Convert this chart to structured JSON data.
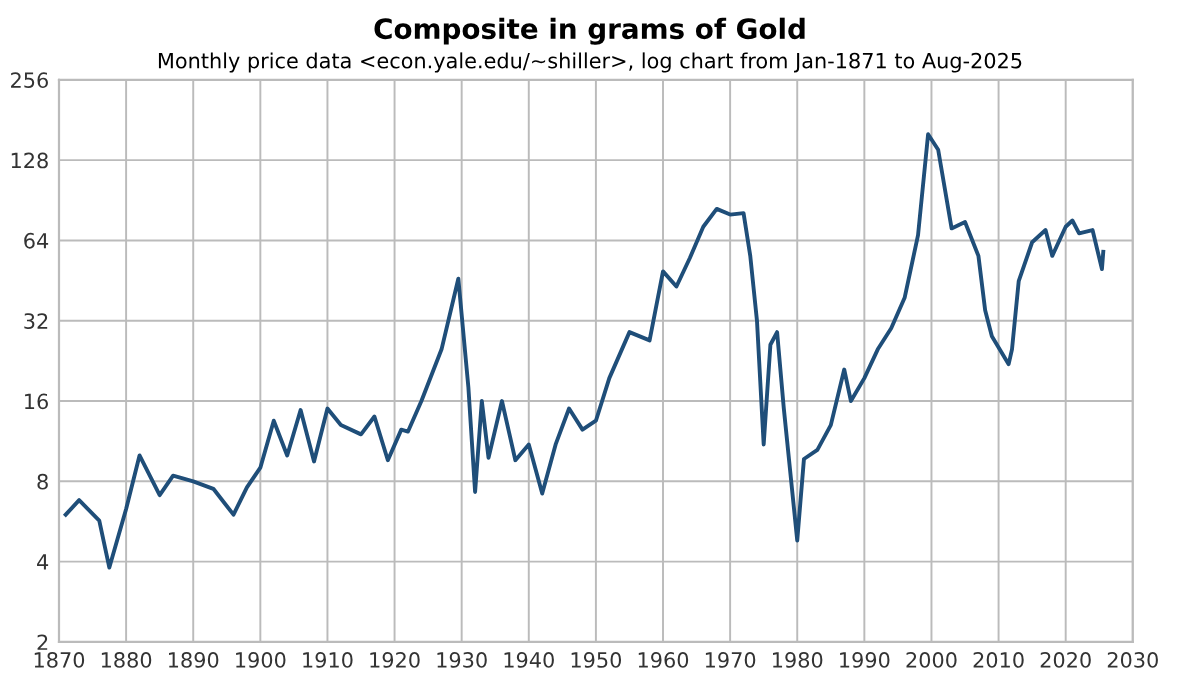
{
  "chart_data": {
    "type": "line",
    "title": "Composite in grams of Gold",
    "subtitle": "Monthly price data <econ.yale.edu/~shiller>, log chart from Jan-1871 to Aug-2025",
    "log": "y",
    "grid": true,
    "legend": false,
    "marker": "none",
    "line_style": "solid",
    "xlim": [
      1870,
      2030
    ],
    "xticks": [
      1870,
      1880,
      1890,
      1900,
      1910,
      1920,
      1930,
      1940,
      1950,
      1960,
      1970,
      1980,
      1990,
      2000,
      2010,
      2020,
      2030
    ],
    "ylim": [
      2,
      256
    ],
    "yticks": [
      2,
      4,
      8,
      16,
      32,
      64,
      128,
      256
    ],
    "series": [
      {
        "color": "#1f4e79",
        "x": [
          1871,
          1873,
          1876,
          1877.5,
          1880,
          1882,
          1885,
          1887,
          1890,
          1893,
          1896,
          1898,
          1900,
          1902,
          1904,
          1906,
          1908,
          1910,
          1912,
          1915,
          1917,
          1919,
          1921,
          1922,
          1924,
          1927,
          1929.5,
          1931,
          1932,
          1933,
          1934,
          1936,
          1938,
          1940,
          1942,
          1944,
          1946,
          1948,
          1950,
          1952,
          1955,
          1958,
          1960,
          1962,
          1964,
          1966,
          1968,
          1970,
          1972,
          1973,
          1974,
          1975,
          1976,
          1977,
          1978,
          1980,
          1981,
          1983,
          1985,
          1987,
          1988,
          1990,
          1992,
          1994,
          1996,
          1998,
          1999.5,
          2001,
          2003,
          2005,
          2007,
          2008,
          2009,
          2011.5,
          2012,
          2013,
          2015,
          2017,
          2018,
          2020,
          2021,
          2022,
          2024,
          2025.4,
          2025.6
        ],
        "values": [
          6,
          6.8,
          5.7,
          3.8,
          6.3,
          10,
          7.1,
          8.4,
          8,
          7.5,
          6,
          7.6,
          9,
          13.5,
          10,
          14.8,
          9.5,
          15,
          13,
          12,
          14,
          9.6,
          12.5,
          12.3,
          16,
          25,
          46,
          18,
          7.3,
          16,
          9.8,
          16,
          9.6,
          11,
          7.2,
          11,
          15,
          12.5,
          13.5,
          19.5,
          29,
          27,
          49,
          43,
          55,
          72,
          84,
          80,
          81,
          56,
          32,
          11,
          26,
          29,
          15,
          4.8,
          9.7,
          10.5,
          13,
          21,
          16,
          19.5,
          25,
          30,
          39,
          67,
          160,
          140,
          71,
          75,
          56,
          35,
          28,
          22,
          25,
          45,
          63,
          70,
          56,
          72,
          76,
          68,
          70,
          50,
          58
        ]
      }
    ]
  }
}
